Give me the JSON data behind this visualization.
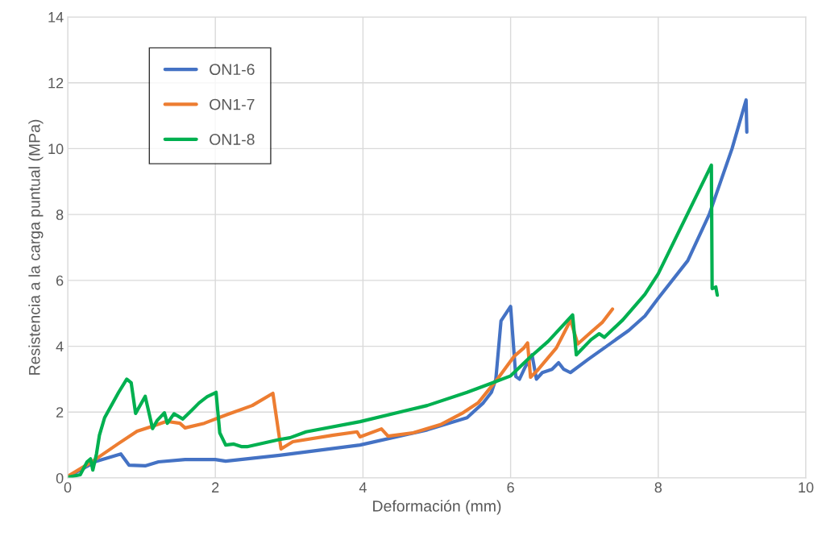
{
  "chart_data": {
    "type": "line",
    "xlabel": "Deformación (mm)",
    "ylabel": "Resistencia a la carga puntual (MPa)",
    "xlim": [
      0,
      10
    ],
    "ylim": [
      0,
      14
    ],
    "xticks": [
      0,
      2,
      4,
      6,
      8,
      10
    ],
    "yticks": [
      0,
      2,
      4,
      6,
      8,
      10,
      12,
      14
    ],
    "grid": true,
    "legend": "top left",
    "marker": "none",
    "line_style": "solid",
    "series": [
      {
        "name": "ON1-6",
        "color": "#4472c4",
        "x": [
          0,
          0.39,
          0.72,
          0.83,
          1.05,
          1.23,
          1.59,
          2.0,
          2.14,
          2.87,
          3.96,
          4.87,
          5.41,
          5.63,
          5.74,
          5.8,
          5.87,
          6.0,
          6.07,
          6.12,
          6.2,
          6.29,
          6.35,
          6.43,
          6.56,
          6.65,
          6.72,
          6.81,
          7.05,
          7.3,
          7.6,
          7.82,
          8.0,
          8.4,
          8.69,
          9.0,
          9.19,
          9.2
        ],
        "values": [
          0.03,
          0.51,
          0.73,
          0.39,
          0.37,
          0.49,
          0.56,
          0.56,
          0.51,
          0.69,
          1.0,
          1.46,
          1.83,
          2.28,
          2.6,
          3.0,
          4.77,
          5.21,
          3.08,
          3.0,
          3.38,
          3.74,
          3.0,
          3.2,
          3.3,
          3.5,
          3.3,
          3.2,
          3.6,
          4.0,
          4.48,
          4.92,
          5.46,
          6.6,
          8.0,
          10.0,
          11.48,
          10.5
        ]
      },
      {
        "name": "ON1-7",
        "color": "#ed7d31",
        "x": [
          0,
          0.32,
          0.69,
          0.94,
          1.16,
          1.34,
          1.52,
          1.59,
          1.85,
          2.14,
          2.5,
          2.78,
          2.89,
          3.05,
          3.6,
          3.92,
          3.96,
          4.25,
          4.34,
          4.68,
          5.05,
          5.34,
          5.56,
          5.82,
          6.05,
          6.18,
          6.23,
          6.27,
          6.36,
          6.62,
          6.78,
          6.81,
          6.91,
          7.09,
          7.24,
          7.38
        ],
        "values": [
          0.05,
          0.48,
          1.05,
          1.42,
          1.58,
          1.72,
          1.66,
          1.52,
          1.66,
          1.91,
          2.2,
          2.57,
          0.88,
          1.1,
          1.3,
          1.4,
          1.25,
          1.49,
          1.27,
          1.37,
          1.62,
          1.96,
          2.28,
          3.0,
          3.7,
          3.95,
          4.1,
          3.06,
          3.26,
          3.95,
          4.65,
          4.8,
          4.07,
          4.43,
          4.72,
          5.13
        ]
      },
      {
        "name": "ON1-8",
        "color": "#00b050",
        "x": [
          0,
          0.17,
          0.26,
          0.31,
          0.34,
          0.39,
          0.43,
          0.5,
          0.69,
          0.8,
          0.86,
          0.92,
          1.05,
          1.15,
          1.21,
          1.31,
          1.35,
          1.44,
          1.56,
          1.67,
          1.78,
          1.89,
          2.01,
          2.06,
          2.14,
          2.25,
          2.36,
          2.43,
          2.87,
          3.01,
          3.23,
          3.96,
          4.87,
          5.41,
          5.71,
          6.0,
          6.26,
          6.51,
          6.84,
          6.89,
          7.09,
          7.2,
          7.27,
          7.52,
          7.82,
          8.0,
          8.72,
          8.73,
          8.78,
          8.8
        ],
        "values": [
          0.02,
          0.1,
          0.48,
          0.58,
          0.24,
          0.73,
          1.3,
          1.83,
          2.6,
          3.0,
          2.89,
          1.96,
          2.48,
          1.5,
          1.74,
          1.98,
          1.66,
          1.95,
          1.79,
          2.03,
          2.28,
          2.47,
          2.6,
          1.37,
          1.0,
          1.03,
          0.95,
          0.95,
          1.17,
          1.22,
          1.4,
          1.71,
          2.2,
          2.6,
          2.85,
          3.1,
          3.66,
          4.15,
          4.95,
          3.74,
          4.2,
          4.38,
          4.27,
          4.8,
          5.58,
          6.2,
          9.5,
          5.75,
          5.8,
          5.55
        ]
      }
    ]
  }
}
